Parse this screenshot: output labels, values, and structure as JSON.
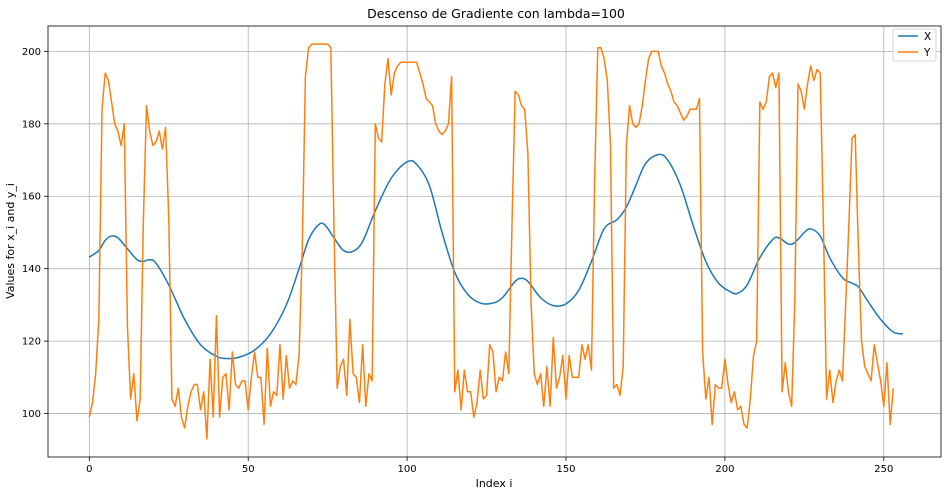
{
  "chart_data": {
    "type": "line",
    "title": "Descenso de Gradiente con lambda=100",
    "xlabel": "Index i",
    "ylabel": "Values for x_i and y_i",
    "xlim": [
      -13,
      268
    ],
    "ylim": [
      88,
      207
    ],
    "xticks": [
      0,
      50,
      100,
      150,
      200,
      250
    ],
    "yticks": [
      100,
      120,
      140,
      160,
      180,
      200
    ],
    "grid": true,
    "legend_position": "top-right",
    "series": [
      {
        "name": "X",
        "color": "#1f77b4",
        "keypoints": [
          [
            0,
            143.2
          ],
          [
            3,
            145
          ],
          [
            5,
            147.8
          ],
          [
            7,
            149
          ],
          [
            9,
            148.5
          ],
          [
            12,
            145.5
          ],
          [
            15,
            142.5
          ],
          [
            17,
            142
          ],
          [
            19,
            142.5
          ],
          [
            21,
            141.5
          ],
          [
            25,
            135.5
          ],
          [
            30,
            126
          ],
          [
            35,
            119
          ],
          [
            40,
            115.8
          ],
          [
            43,
            115.2
          ],
          [
            47,
            115.5
          ],
          [
            52,
            117.5
          ],
          [
            57,
            122
          ],
          [
            62,
            130
          ],
          [
            66,
            140
          ],
          [
            69,
            148
          ],
          [
            72,
            152
          ],
          [
            74,
            152.2
          ],
          [
            77,
            148.5
          ],
          [
            80,
            145
          ],
          [
            83,
            144.8
          ],
          [
            86,
            147.5
          ],
          [
            90,
            156
          ],
          [
            95,
            165
          ],
          [
            100,
            169.5
          ],
          [
            103,
            168.8
          ],
          [
            107,
            163
          ],
          [
            111,
            150
          ],
          [
            115,
            139
          ],
          [
            119,
            133
          ],
          [
            123,
            130.5
          ],
          [
            127,
            130.5
          ],
          [
            130,
            132
          ],
          [
            134,
            136.5
          ],
          [
            136,
            137.3
          ],
          [
            138,
            136.5
          ],
          [
            142,
            132
          ],
          [
            146,
            129.8
          ],
          [
            150,
            130.3
          ],
          [
            154,
            134
          ],
          [
            158,
            142
          ],
          [
            162,
            151
          ],
          [
            166,
            153.5
          ],
          [
            169,
            157
          ],
          [
            172,
            163
          ],
          [
            175,
            169
          ],
          [
            179,
            171.5
          ],
          [
            182,
            170
          ],
          [
            186,
            163
          ],
          [
            190,
            152
          ],
          [
            194,
            142
          ],
          [
            198,
            136
          ],
          [
            202,
            133.5
          ],
          [
            204,
            133.2
          ],
          [
            207,
            135.5
          ],
          [
            211,
            143
          ],
          [
            215,
            148
          ],
          [
            217,
            148.5
          ],
          [
            220,
            146.8
          ],
          [
            222,
            147.2
          ],
          [
            225,
            150
          ],
          [
            227,
            151
          ],
          [
            230,
            149
          ],
          [
            233,
            143
          ],
          [
            237,
            137.5
          ],
          [
            240,
            136
          ],
          [
            242,
            135
          ],
          [
            245,
            131
          ],
          [
            249,
            126
          ],
          [
            253,
            122.5
          ],
          [
            256,
            122
          ]
        ]
      },
      {
        "name": "Y",
        "color": "#ff7f0e",
        "values": [
          99,
          103,
          111,
          126,
          184,
          194,
          192,
          186,
          180,
          178,
          174,
          180,
          124,
          104,
          111,
          98,
          104,
          153,
          185,
          178,
          174,
          175,
          178,
          173,
          179,
          154,
          104,
          102,
          107,
          99,
          96,
          102,
          106,
          108,
          108,
          101,
          106,
          93,
          115,
          99,
          127,
          99,
          110,
          111,
          101,
          117,
          108,
          107,
          109,
          109,
          101,
          110,
          117,
          110,
          110,
          97,
          118,
          102,
          106,
          105,
          119,
          104,
          116,
          107,
          109,
          108,
          116,
          145,
          193,
          201,
          202,
          202,
          202,
          202,
          202,
          202,
          201,
          151,
          107,
          113,
          115,
          105,
          126,
          111,
          110,
          103,
          119,
          102,
          111,
          109,
          180,
          176,
          175,
          191,
          198,
          188,
          194,
          196,
          197,
          197,
          197,
          197,
          197,
          197,
          194,
          191,
          187,
          186,
          185,
          180,
          178,
          177,
          178,
          180,
          193,
          106,
          112,
          101,
          112,
          106,
          106,
          99,
          103,
          112,
          104,
          105,
          119,
          117,
          106,
          110,
          109,
          117,
          111,
          152,
          189,
          188,
          185,
          184,
          172,
          131,
          111,
          108,
          111,
          102,
          113,
          102,
          121,
          107,
          110,
          116,
          104,
          116,
          110,
          110,
          110,
          119,
          115,
          119,
          112,
          164,
          201,
          201,
          198,
          192,
          174,
          107,
          108,
          105,
          113,
          174,
          185,
          180,
          179,
          180,
          185,
          192,
          198,
          200,
          200,
          200,
          196,
          194,
          191,
          189,
          186,
          185,
          183,
          181,
          182,
          184,
          184,
          184,
          187,
          117,
          104,
          110,
          97,
          108,
          107,
          107,
          115,
          108,
          103,
          106,
          101,
          102,
          97,
          96,
          104,
          116,
          120,
          186,
          184,
          186,
          193,
          194,
          190,
          194,
          106,
          114,
          106,
          102,
          131,
          191,
          189,
          184,
          191,
          196,
          192,
          195,
          194,
          152,
          104,
          112,
          103,
          109,
          112,
          109,
          130,
          152,
          176,
          177,
          146,
          120,
          113,
          111,
          109,
          119,
          114,
          109,
          102,
          114,
          97,
          107
        ]
      }
    ]
  }
}
